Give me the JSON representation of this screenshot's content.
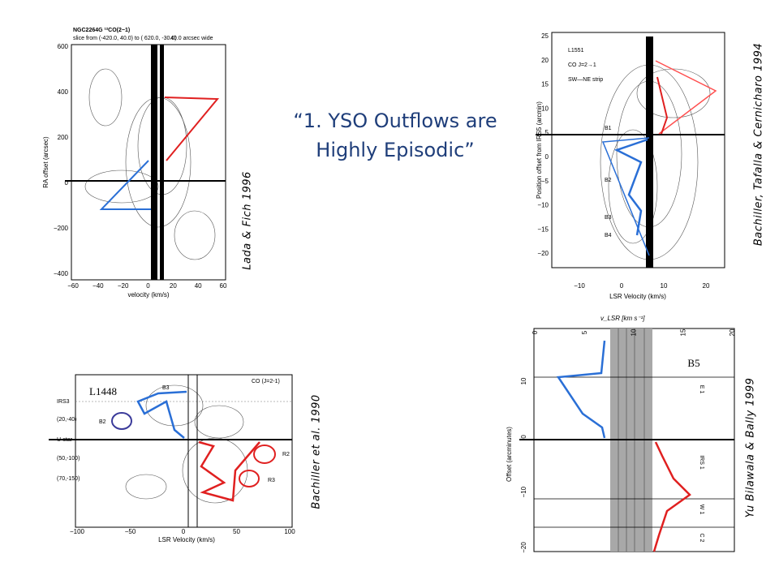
{
  "title": {
    "lines": [
      "“1. YSO Outflows are",
      "Highly Episodic”"
    ]
  },
  "panels": [
    {
      "credit": "Lada & Fich 1996",
      "header": [
        "NGC2264G ¹²CO(2−1)",
        "slice from (-420.0, 40.0) to ( 620.0, -30.0)",
        "40.0 arcsec wide"
      ],
      "y_label": "RA offset (arcsec)",
      "x_label": "velocity (km/s)",
      "yticks": [
        "600",
        "400",
        "200",
        "0",
        "−200",
        "−400"
      ],
      "xticks": [
        "−60",
        "−40",
        "−20",
        "0",
        "20",
        "40",
        "60"
      ]
    },
    {
      "credit": "Bachiller, Tafalla & Cernicharo 1994",
      "header": [
        "L1551",
        "CO J=2→1",
        "SW—NE strip"
      ],
      "labels": [
        "B1",
        "B2",
        "B3",
        "B4"
      ],
      "y_label": "Position offset from IRS5 (arcmin)",
      "x_label": "LSR Velocity (km/s)",
      "yticks": [
        "25",
        "20",
        "15",
        "10",
        "5",
        "0",
        "−5",
        "−10",
        "−15",
        "−20"
      ],
      "xticks": [
        "−10",
        "0",
        "10",
        "20"
      ]
    },
    {
      "credit": "Bachiller et al. 1990",
      "header": [
        "L1448",
        "CO (J=2-1)"
      ],
      "row_labels": [
        "IRS3",
        "(20,-40)",
        "U-star",
        "(50,-100)",
        "(70,-150)"
      ],
      "labels": [
        "B2",
        "B3",
        "R2",
        "R3"
      ],
      "x_label": "LSR Velocity (km/s)",
      "xticks": [
        "−100",
        "−50",
        "0",
        "50",
        "100"
      ]
    },
    {
      "credit": "Yu Bilawala & Bally 1999",
      "header": [
        "B5"
      ],
      "x_label": "v_LSR [km s⁻¹]",
      "y_label": "Offset (arcminutes)",
      "labels": [
        "E 1",
        "IRS 1",
        "W 1",
        "C 2"
      ],
      "xticks": [
        "0",
        "5",
        "10",
        "15",
        "20"
      ],
      "yticks": [
        "10",
        "0",
        "−10",
        "−20"
      ]
    }
  ]
}
